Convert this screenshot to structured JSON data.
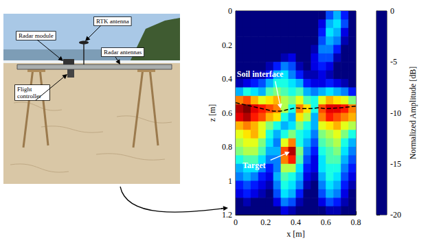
{
  "chart_data": {
    "type": "heatmap",
    "xlabel": "x [m]",
    "ylabel": "z [m]",
    "xlim": [
      0,
      0.8
    ],
    "ylim": [
      0,
      1.2
    ],
    "xticks": [
      0,
      0.2,
      0.4,
      0.6,
      0.8
    ],
    "yticks": [
      0,
      0.2,
      0.4,
      0.6,
      0.8,
      1,
      1.2
    ],
    "cell_x": [
      0.025,
      0.075,
      0.125,
      0.175,
      0.225,
      0.275,
      0.325,
      0.375,
      0.425,
      0.475,
      0.525,
      0.575,
      0.625,
      0.675,
      0.725,
      0.775
    ],
    "cell_z": [
      0.025,
      0.075,
      0.125,
      0.175,
      0.225,
      0.275,
      0.325,
      0.375,
      0.425,
      0.475,
      0.525,
      0.575,
      0.625,
      0.675,
      0.725,
      0.775,
      0.825,
      0.875,
      0.925,
      0.975,
      1.025,
      1.075,
      1.125,
      1.175
    ],
    "cells": [
      [
        -20,
        -20,
        -20,
        -20,
        -20,
        -20,
        -20,
        -20,
        -20,
        -20,
        -20,
        -20,
        -16,
        -14,
        -17,
        -20
      ],
      [
        -20,
        -20,
        -20,
        -20,
        -20,
        -20,
        -20,
        -20,
        -20,
        -20,
        -20,
        -18,
        -14,
        -13,
        -16,
        -20
      ],
      [
        -20,
        -20,
        -20,
        -20,
        -20,
        -20,
        -20,
        -20,
        -20,
        -20,
        -20,
        -17,
        -13,
        -14,
        -18,
        -20
      ],
      [
        -20,
        -20,
        -20,
        -20,
        -20,
        -20,
        -20,
        -20,
        -20,
        -20,
        -20,
        -16,
        -14,
        -15,
        -19,
        -20
      ],
      [
        -20,
        -20,
        -20,
        -20,
        -20,
        -20,
        -20,
        -20,
        -20,
        -20,
        -19,
        -15,
        -15,
        -17,
        -20,
        -20
      ],
      [
        -20,
        -20,
        -20,
        -20,
        -20,
        -20,
        -19,
        -18,
        -20,
        -20,
        -18,
        -16,
        -16,
        -19,
        -20,
        -20
      ],
      [
        -20,
        -20,
        -20,
        -20,
        -19,
        -17,
        -15,
        -16,
        -19,
        -20,
        -18,
        -17,
        -18,
        -20,
        -20,
        -20
      ],
      [
        -20,
        -20,
        -19,
        -19,
        -17,
        -14,
        -13,
        -15,
        -17,
        -19,
        -19,
        -18,
        -19,
        -20,
        -20,
        -20
      ],
      [
        -19,
        -18,
        -17,
        -16,
        -14,
        -12,
        -12,
        -13,
        -14,
        -17,
        -18,
        -18,
        -17,
        -18,
        -19,
        -20
      ],
      [
        -14,
        -12,
        -13,
        -14,
        -11,
        -10,
        -11,
        -12,
        -11,
        -14,
        -15,
        -14,
        -13,
        -14,
        -15,
        -17
      ],
      [
        -5,
        -4,
        -6,
        -8,
        -7,
        -6,
        -9,
        -10,
        -8,
        -11,
        -12,
        -8,
        -6,
        -7,
        -8,
        -10
      ],
      [
        -1,
        0,
        -2,
        -3,
        -4,
        -5,
        -9,
        -12,
        -5,
        -7,
        -12,
        -4,
        -2,
        -2,
        -3,
        -5
      ],
      [
        -2,
        -1,
        -3,
        -4,
        -6,
        -7,
        -12,
        -14,
        -7,
        -9,
        -14,
        -5,
        -3,
        -4,
        -5,
        -6
      ],
      [
        -6,
        -5,
        -6,
        -8,
        -10,
        -12,
        -14,
        -13,
        -10,
        -12,
        -14,
        -8,
        -7,
        -6,
        -8,
        -9
      ],
      [
        -8,
        -7,
        -6,
        -8,
        -12,
        -14,
        -12,
        -10,
        -12,
        -13,
        -15,
        -10,
        -9,
        -8,
        -10,
        -12
      ],
      [
        -9,
        -8,
        -8,
        -10,
        -13,
        -15,
        -8,
        -5,
        -12,
        -14,
        -16,
        -11,
        -10,
        -9,
        -12,
        -14
      ],
      [
        -10,
        -9,
        -9,
        -11,
        -14,
        -14,
        -4,
        -1,
        -10,
        -15,
        -17,
        -12,
        -11,
        -10,
        -13,
        -15
      ],
      [
        -12,
        -11,
        -11,
        -13,
        -15,
        -15,
        -5,
        -3,
        -11,
        -16,
        -18,
        -13,
        -11,
        -11,
        -14,
        -16
      ],
      [
        -14,
        -13,
        -13,
        -15,
        -17,
        -15,
        -9,
        -9,
        -13,
        -17,
        -18,
        -13,
        -12,
        -12,
        -15,
        -17
      ],
      [
        -15,
        -14,
        -15,
        -17,
        -18,
        -14,
        -11,
        -12,
        -14,
        -18,
        -19,
        -14,
        -12,
        -13,
        -16,
        -18
      ],
      [
        -17,
        -16,
        -17,
        -18,
        -19,
        -15,
        -12,
        -13,
        -15,
        -19,
        -20,
        -15,
        -13,
        -14,
        -17,
        -19
      ],
      [
        -18,
        -17,
        -18,
        -19,
        -20,
        -16,
        -13,
        -14,
        -17,
        -20,
        -20,
        -16,
        -14,
        -15,
        -18,
        -20
      ],
      [
        -20,
        -19,
        -20,
        -20,
        -20,
        -18,
        -15,
        -16,
        -19,
        -20,
        -20,
        -18,
        -16,
        -17,
        -19,
        -20
      ],
      [
        -20,
        -20,
        -20,
        -20,
        -20,
        -20,
        -18,
        -19,
        -20,
        -20,
        -20,
        -20,
        -19,
        -19,
        -20,
        -20
      ]
    ],
    "colorbar": {
      "label": "Normalized Amplitude [dB]",
      "range": [
        -20,
        0
      ],
      "ticks": [
        0,
        -5,
        -10,
        -15,
        -20
      ]
    },
    "soil_interface": {
      "x": [
        0,
        0.1,
        0.2,
        0.25,
        0.3,
        0.35,
        0.4,
        0.45,
        0.5,
        0.55,
        0.6,
        0.7,
        0.8
      ],
      "z": [
        0.54,
        0.56,
        0.58,
        0.59,
        0.59,
        0.58,
        0.57,
        0.575,
        0.575,
        0.57,
        0.575,
        0.57,
        0.56
      ],
      "line_style": "dashed",
      "color": "#000000"
    },
    "annotations": [
      {
        "text": "Soil interface",
        "x": 0.3,
        "z": 0.575
      },
      {
        "text": "Target",
        "x": 0.36,
        "z": 0.83
      }
    ]
  },
  "photo": {
    "labels": [
      "Radar module",
      "RTK antenna",
      "Radar antennas",
      "Flight controller"
    ]
  }
}
